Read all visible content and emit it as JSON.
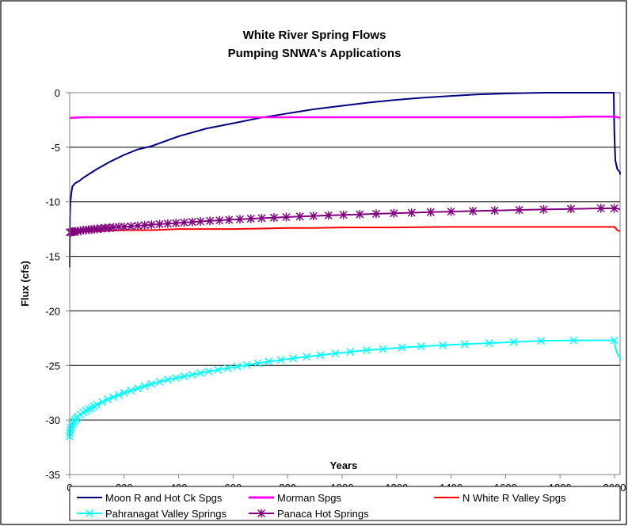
{
  "chart_data": {
    "type": "line",
    "title": "White River Spring Flows",
    "subtitle": "Pumping SNWA's Applications",
    "xlabel": "Years",
    "ylabel": "Flux (cfs)",
    "xlim": [
      0,
      2000
    ],
    "ylim": [
      -35,
      0
    ],
    "xticks": [
      0,
      200,
      400,
      600,
      800,
      1000,
      1200,
      1400,
      1600,
      1800,
      2000
    ],
    "yticks": [
      0,
      -5,
      -10,
      -15,
      -20,
      -25,
      -30,
      -35
    ],
    "grid": "horizontal",
    "legend_position": "bottom",
    "series": [
      {
        "name": "Moon R and Hot Ck Spgs",
        "color": "#000080",
        "marker": "none",
        "x": [
          0,
          1,
          3,
          6,
          10,
          20,
          35,
          50,
          75,
          100,
          150,
          200,
          250,
          300,
          400,
          500,
          600,
          700,
          800,
          900,
          1000,
          1100,
          1200,
          1300,
          1400,
          1500,
          1600,
          1700,
          1750,
          1800,
          1900,
          1997,
          1999,
          2003,
          2010,
          2020,
          2030
        ],
        "values": [
          -16,
          -11.5,
          -10,
          -9.2,
          -8.6,
          -8.3,
          -8.1,
          -7.8,
          -7.4,
          -7.0,
          -6.3,
          -5.7,
          -5.2,
          -4.9,
          -4.0,
          -3.3,
          -2.8,
          -2.3,
          -1.9,
          -1.5,
          -1.2,
          -0.9,
          -0.65,
          -0.45,
          -0.3,
          -0.15,
          -0.07,
          -0.02,
          0,
          0,
          0,
          0,
          -3.5,
          -6.2,
          -7.0,
          -7.3,
          -7.5
        ]
      },
      {
        "name": "Morman Spgs",
        "color": "#FF00FF",
        "marker": "none",
        "x": [
          0,
          10,
          50,
          200,
          500,
          1000,
          1500,
          1800,
          1900,
          2000,
          2030
        ],
        "values": [
          -2.3,
          -2.3,
          -2.25,
          -2.25,
          -2.25,
          -2.25,
          -2.25,
          -2.25,
          -2.2,
          -2.2,
          -2.3
        ]
      },
      {
        "name": "N White R Valley Spgs",
        "color": "#FF0000",
        "marker": "none",
        "x": [
          0,
          10,
          50,
          100,
          200,
          300,
          400,
          500,
          600,
          700,
          800,
          900,
          1000,
          1200,
          1400,
          1600,
          1800,
          2000,
          2010,
          2030
        ],
        "values": [
          -12.8,
          -12.8,
          -12.7,
          -12.7,
          -12.6,
          -12.6,
          -12.5,
          -12.5,
          -12.5,
          -12.45,
          -12.4,
          -12.4,
          -12.35,
          -12.35,
          -12.3,
          -12.3,
          -12.3,
          -12.3,
          -12.6,
          -12.7
        ]
      },
      {
        "name": "Pahranagat Valley Springs",
        "color": "#00FFFF",
        "marker": "x",
        "x": [
          0,
          1,
          3,
          5,
          8,
          12,
          16,
          20,
          25,
          30,
          40,
          50,
          60,
          70,
          80,
          90,
          100,
          120,
          140,
          160,
          180,
          200,
          225,
          250,
          275,
          300,
          330,
          360,
          390,
          420,
          450,
          480,
          510,
          545,
          580,
          615,
          650,
          690,
          730,
          775,
          820,
          870,
          920,
          975,
          1030,
          1090,
          1150,
          1220,
          1290,
          1370,
          1450,
          1540,
          1630,
          1730,
          1850,
          1999,
          2003,
          2010,
          2020,
          2030
        ],
        "values": [
          -31.5,
          -31.2,
          -30.9,
          -30.7,
          -30.5,
          -30.3,
          -30.15,
          -30.0,
          -29.85,
          -29.7,
          -29.5,
          -29.3,
          -29.15,
          -29.0,
          -28.9,
          -28.75,
          -28.6,
          -28.35,
          -28.1,
          -27.9,
          -27.7,
          -27.5,
          -27.3,
          -27.1,
          -26.9,
          -26.7,
          -26.5,
          -26.3,
          -26.15,
          -26.0,
          -25.85,
          -25.7,
          -25.55,
          -25.4,
          -25.25,
          -25.1,
          -24.95,
          -24.8,
          -24.65,
          -24.5,
          -24.35,
          -24.2,
          -24.05,
          -23.9,
          -23.75,
          -23.6,
          -23.5,
          -23.35,
          -23.25,
          -23.15,
          -23.05,
          -22.95,
          -22.85,
          -22.75,
          -22.7,
          -22.7,
          -23.3,
          -23.9,
          -24.3,
          -24.5
        ]
      },
      {
        "name": "Panaca Hot Springs",
        "color": "#800080",
        "marker": "star",
        "x": [
          0,
          5,
          10,
          15,
          20,
          30,
          40,
          50,
          60,
          70,
          80,
          90,
          100,
          115,
          130,
          145,
          160,
          180,
          200,
          225,
          250,
          275,
          300,
          330,
          360,
          390,
          420,
          450,
          480,
          515,
          550,
          585,
          625,
          665,
          705,
          750,
          795,
          845,
          895,
          950,
          1005,
          1065,
          1125,
          1190,
          1255,
          1325,
          1400,
          1480,
          1560,
          1650,
          1740,
          1840,
          1950,
          1999,
          2010,
          2030
        ],
        "values": [
          -12.8,
          -12.8,
          -12.75,
          -12.75,
          -12.7,
          -12.7,
          -12.65,
          -12.6,
          -12.6,
          -12.55,
          -12.55,
          -12.5,
          -12.5,
          -12.45,
          -12.4,
          -12.4,
          -12.35,
          -12.3,
          -12.3,
          -12.25,
          -12.2,
          -12.15,
          -12.1,
          -12.05,
          -12.0,
          -11.95,
          -11.9,
          -11.85,
          -11.8,
          -11.75,
          -11.7,
          -11.65,
          -11.6,
          -11.55,
          -11.5,
          -11.45,
          -11.4,
          -11.35,
          -11.3,
          -11.25,
          -11.2,
          -11.15,
          -11.1,
          -11.05,
          -11.0,
          -10.95,
          -10.9,
          -10.85,
          -10.8,
          -10.75,
          -10.7,
          -10.65,
          -10.6,
          -10.6,
          -10.6,
          -10.7
        ]
      }
    ]
  }
}
